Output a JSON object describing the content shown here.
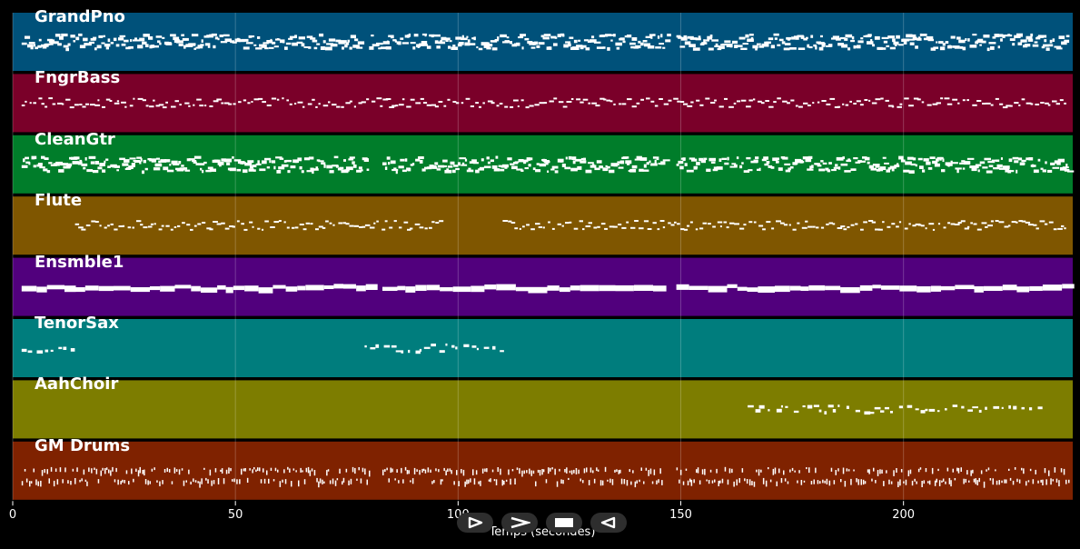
{
  "chart_data": {
    "type": "piano-roll",
    "xlabel": "Temps (secondes)",
    "xlim": [
      0,
      238
    ],
    "x_ticks": [
      0,
      50,
      100,
      150,
      200
    ],
    "grid": true,
    "tracks": [
      {
        "name": "GrandPno",
        "color": "#00517a",
        "density": "high",
        "segments": [
          [
            2,
            78
          ],
          [
            80,
            147
          ],
          [
            149,
            237
          ]
        ]
      },
      {
        "name": "FngrBass",
        "color": "#7a0029",
        "density": "medium",
        "segments": [
          [
            2,
            237
          ]
        ]
      },
      {
        "name": "CleanGtr",
        "color": "#007d2a",
        "density": "high",
        "segments": [
          [
            2,
            80
          ],
          [
            83,
            146
          ],
          [
            149,
            237
          ]
        ]
      },
      {
        "name": "Flute",
        "color": "#7f5600",
        "density": "medium",
        "segments": [
          [
            14,
            96
          ],
          [
            110,
            237
          ]
        ]
      },
      {
        "name": "Ensmble1",
        "color": "#51007d",
        "density": "sustained",
        "segments": [
          [
            2,
            80
          ],
          [
            83,
            146
          ],
          [
            149,
            237
          ]
        ]
      },
      {
        "name": "TenorSax",
        "color": "#007d7d",
        "density": "sparse",
        "segments": [
          [
            2,
            14
          ],
          [
            79,
            110
          ]
        ]
      },
      {
        "name": "AahChoir",
        "color": "#7d7d00",
        "density": "sparse",
        "segments": [
          [
            165,
            231
          ]
        ]
      },
      {
        "name": "GM Drums",
        "color": "#7f2200",
        "density": "drums",
        "segments": [
          [
            2,
            80
          ],
          [
            83,
            146
          ],
          [
            149,
            237
          ]
        ]
      }
    ]
  },
  "controls": [
    {
      "name": "play-button",
      "glyph": "play-outline"
    },
    {
      "name": "fast-forward-button",
      "glyph": "chevron-right"
    },
    {
      "name": "stop-button",
      "glyph": "square"
    },
    {
      "name": "rewind-button",
      "glyph": "triangle-left"
    }
  ]
}
